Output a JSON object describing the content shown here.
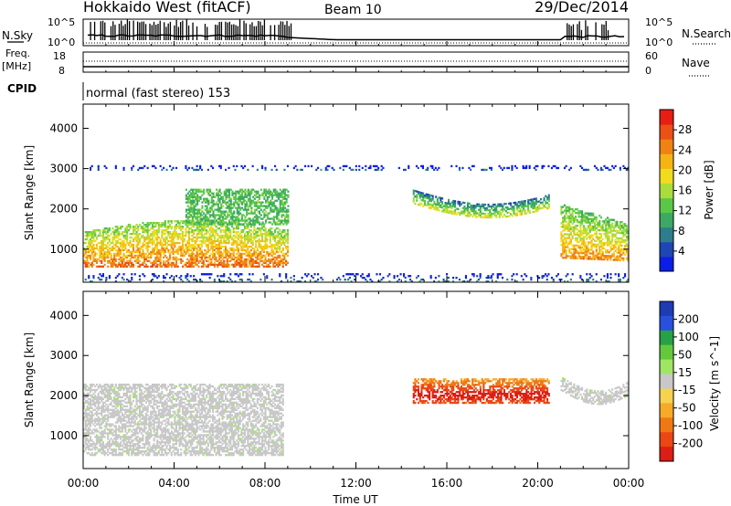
{
  "header": {
    "title": "Hokkaido West (fitACF)",
    "beam": "Beam 10",
    "date": "29/Dec/2014"
  },
  "noise_panel": {
    "left_label": "N.Sky",
    "right_label": "N.Search",
    "left_ticks": [
      "10^5",
      "10^0"
    ],
    "right_ticks": [
      "10^5",
      "10^0"
    ]
  },
  "freq_panel": {
    "left_label_line1": "Freq.",
    "left_label_line2": "[MHz]",
    "left_ticks": [
      "18",
      "8"
    ],
    "right_label": "Nave",
    "right_ticks": [
      "60",
      "0"
    ]
  },
  "cpid_panel": {
    "label": "CPID",
    "text": "normal (fast stereo) 153"
  },
  "chart_data": [
    {
      "type": "heatmap",
      "name": "power",
      "ylabel": "Slant Range [km]",
      "ylim": [
        180,
        4600
      ],
      "yticks": [
        1000,
        2000,
        3000,
        4000
      ],
      "xlim": [
        0,
        24
      ],
      "x_tick_labels": [
        "00:00",
        "04:00",
        "08:00",
        "12:00",
        "16:00",
        "20:00",
        "00:00"
      ],
      "xlabel": "Time UT",
      "colorbar": {
        "label": "Power [dB]",
        "min": 0,
        "max": 32,
        "tick_labels": [
          "4",
          "8",
          "12",
          "16",
          "20",
          "24",
          "28"
        ],
        "colors": [
          "#0a1ee6",
          "#1e46b4",
          "#2d7d8c",
          "#3ca864",
          "#5ac846",
          "#aadc3c",
          "#f0dc1e",
          "#f5b414",
          "#f08214",
          "#eb5014",
          "#e61e14"
        ]
      },
      "regions": [
        {
          "label": "morning echo",
          "t_start": 0.0,
          "t_end": 9.0,
          "range_min": 550,
          "range_max": 1700,
          "power_db": 26
        },
        {
          "label": "morning upper echo",
          "t_start": 4.5,
          "t_end": 9.0,
          "range_min": 1600,
          "range_max": 2500,
          "power_db": 12
        },
        {
          "label": "afternoon echo",
          "t_start": 14.5,
          "t_end": 20.5,
          "range_min": 1900,
          "range_max": 2400,
          "power_db": 18
        },
        {
          "label": "evening echo",
          "t_start": 21.0,
          "t_end": 24.0,
          "range_min": 700,
          "range_max": 2100,
          "power_db": 24
        },
        {
          "label": "ground scatter band",
          "t_start": 0.0,
          "t_end": 24.0,
          "range_min": 180,
          "range_max": 400,
          "power_db": 8
        },
        {
          "label": "3000 km scatter",
          "t_start": 0.0,
          "t_end": 24.0,
          "range_min": 2950,
          "range_max": 3050,
          "power_db": 6
        }
      ]
    },
    {
      "type": "heatmap",
      "name": "velocity",
      "ylabel": "Slant Range [km]",
      "ylim": [
        180,
        4600
      ],
      "yticks": [
        1000,
        2000,
        3000,
        4000
      ],
      "xlim": [
        0,
        24
      ],
      "x_tick_labels": [
        "00:00",
        "04:00",
        "08:00",
        "12:00",
        "16:00",
        "20:00",
        "00:00"
      ],
      "xlabel": "Time UT",
      "colorbar": {
        "label": "Velocity [m s^-1]",
        "tick_labels": [
          "200",
          "100",
          "50",
          "15",
          "-15",
          "-50",
          "-100",
          "-200"
        ],
        "colors": [
          "#1e3cb4",
          "#2850dc",
          "#28a046",
          "#64c83c",
          "#a0e664",
          "#c8c8c8",
          "#f5d250",
          "#f5aa28",
          "#f07814",
          "#eb4614",
          "#dc1e14"
        ]
      },
      "regions": [
        {
          "label": "morning ground scatter",
          "t_start": 0.0,
          "t_end": 8.8,
          "range_min": 500,
          "range_max": 2300,
          "velocity": 0
        },
        {
          "label": "afternoon flow",
          "t_start": 14.5,
          "t_end": 20.5,
          "range_min": 1800,
          "range_max": 2400,
          "velocity": -180
        },
        {
          "label": "evening ground scatter",
          "t_start": 21.0,
          "t_end": 24.0,
          "range_min": 600,
          "range_max": 1700,
          "velocity": 0
        }
      ]
    }
  ]
}
